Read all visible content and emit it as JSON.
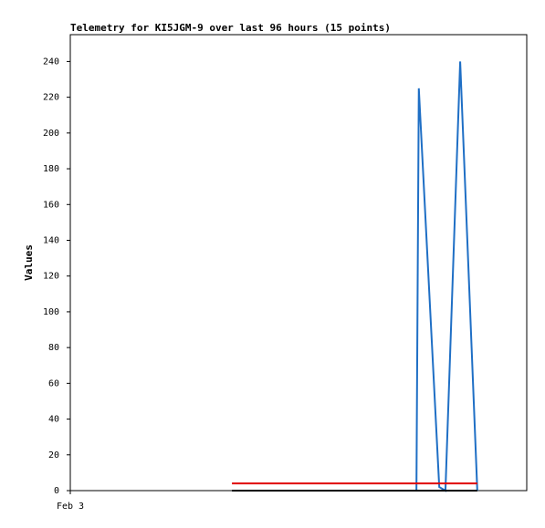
{
  "chart_data": {
    "type": "line",
    "title": "Telemetry for KI5JGM-9 over last 96 hours (15 points)",
    "y_label": "Values",
    "x": [
      34,
      39,
      44,
      49,
      54,
      59,
      64,
      69,
      72.8,
      73.3,
      77.6,
      78.9,
      82.0,
      84,
      85.6
    ],
    "series": [
      {
        "color": "#1f6fc5",
        "values": [
          0,
          0,
          0,
          0,
          0,
          0,
          0,
          0,
          0,
          225,
          2,
          0,
          240,
          107,
          0
        ]
      },
      {
        "color": "#000000",
        "values": [
          0,
          0,
          0,
          0,
          0,
          0,
          0,
          0,
          0,
          0,
          0,
          0,
          0,
          0,
          0
        ]
      },
      {
        "color": "#e00000",
        "values": [
          4,
          4,
          4,
          4,
          4,
          4,
          4,
          4,
          4,
          4,
          4,
          4,
          4,
          4,
          4
        ]
      }
    ],
    "xlim": [
      0,
      96
    ],
    "xticks": [
      {
        "value": 0,
        "label": "Feb 3"
      }
    ],
    "ylim": [
      0,
      255
    ],
    "yticks": [
      0,
      20,
      40,
      60,
      80,
      100,
      120,
      140,
      160,
      180,
      200,
      220,
      240
    ]
  }
}
